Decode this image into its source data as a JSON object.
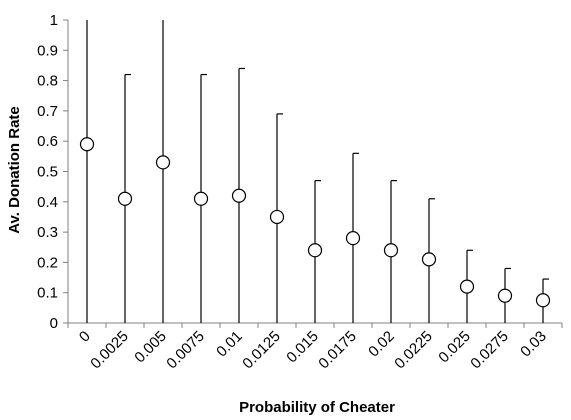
{
  "chart_data": {
    "type": "scatter",
    "title": "",
    "xlabel": "Probability of Cheater",
    "ylabel": "Av. Donation Rate",
    "ylim": [
      0,
      1
    ],
    "yticks": [
      "0",
      "0.1",
      "0.2",
      "0.3",
      "0.4",
      "0.5",
      "0.6",
      "0.7",
      "0.8",
      "0.9",
      "1"
    ],
    "categories": [
      "0",
      "0.0025",
      "0.005",
      "0.0075",
      "0.01",
      "0.0125",
      "0.015",
      "0.0175",
      "0.02",
      "0.0225",
      "0.025",
      "0.0275",
      "0.03"
    ],
    "series": [
      {
        "values": [
          0.59,
          0.41,
          0.53,
          0.41,
          0.42,
          0.35,
          0.24,
          0.28,
          0.24,
          0.21,
          0.12,
          0.09,
          0.075
        ],
        "error_upper": [
          1.0,
          0.82,
          1.0,
          0.82,
          0.84,
          0.69,
          0.47,
          0.56,
          0.47,
          0.41,
          0.24,
          0.18,
          0.145
        ],
        "error_lower": [
          0,
          0,
          0,
          0,
          0,
          0,
          0,
          0,
          0,
          0,
          0,
          0,
          0
        ]
      }
    ],
    "grid": false,
    "legend": "none"
  }
}
